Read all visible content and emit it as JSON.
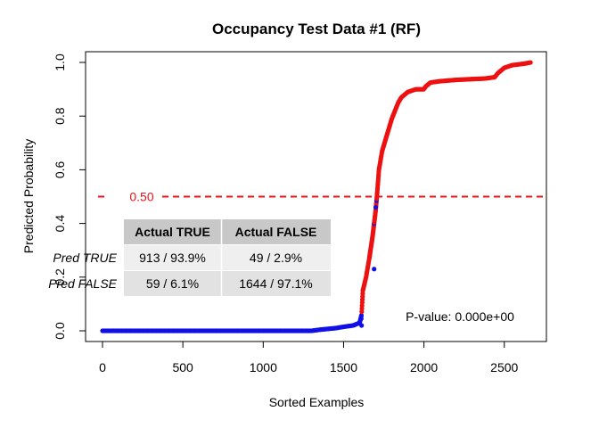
{
  "chart_data": {
    "type": "scatter",
    "title": "Occupancy Test Data #1 (RF)",
    "xlabel": "Sorted Examples",
    "ylabel": "Predicted Probability",
    "xlim": [
      0,
      2665
    ],
    "ylim": [
      0,
      1
    ],
    "xticks": [
      "0",
      "500",
      "1000",
      "1500",
      "2000",
      "2500"
    ],
    "yticks": [
      "0.0",
      "0.2",
      "0.4",
      "0.6",
      "0.8",
      "1.0"
    ],
    "grid": false,
    "threshold": {
      "value": 0.5,
      "label": "0.50",
      "color": "#e8141a"
    },
    "series": [
      {
        "label": "Actual FALSE",
        "color": "#1010e6"
      },
      {
        "label": "Actual TRUE",
        "color": "#ee1111"
      }
    ],
    "curve": [
      [
        0,
        0.0
      ],
      [
        1200,
        0.0
      ],
      [
        1300,
        0.0
      ],
      [
        1350,
        0.004
      ],
      [
        1450,
        0.01
      ],
      [
        1500,
        0.015
      ],
      [
        1560,
        0.02
      ],
      [
        1600,
        0.03
      ],
      [
        1612,
        0.06
      ],
      [
        1620,
        0.15
      ],
      [
        1640,
        0.2
      ],
      [
        1660,
        0.27
      ],
      [
        1680,
        0.35
      ],
      [
        1700,
        0.45
      ],
      [
        1710,
        0.52
      ],
      [
        1720,
        0.6
      ],
      [
        1740,
        0.67
      ],
      [
        1760,
        0.71
      ],
      [
        1780,
        0.75
      ],
      [
        1800,
        0.79
      ],
      [
        1820,
        0.82
      ],
      [
        1840,
        0.85
      ],
      [
        1860,
        0.87
      ],
      [
        1900,
        0.89
      ],
      [
        1950,
        0.9
      ],
      [
        2000,
        0.9
      ],
      [
        2010,
        0.91
      ],
      [
        2040,
        0.925
      ],
      [
        2100,
        0.93
      ],
      [
        2200,
        0.935
      ],
      [
        2300,
        0.938
      ],
      [
        2380,
        0.94
      ],
      [
        2440,
        0.945
      ],
      [
        2460,
        0.96
      ],
      [
        2500,
        0.98
      ],
      [
        2550,
        0.99
      ],
      [
        2620,
        0.995
      ],
      [
        2665,
        1.0
      ]
    ],
    "confusion_table": {
      "col_headers": [
        "Actual TRUE",
        "Actual FALSE"
      ],
      "rows": [
        {
          "label": "Pred TRUE",
          "cells": [
            "913 / 93.9%",
            "49 / 2.9%"
          ]
        },
        {
          "label": "Pred FALSE",
          "cells": [
            "59 / 6.1%",
            "1644 / 97.1%"
          ]
        }
      ]
    },
    "pvalue_text": "P-value: 0.000e+00"
  }
}
